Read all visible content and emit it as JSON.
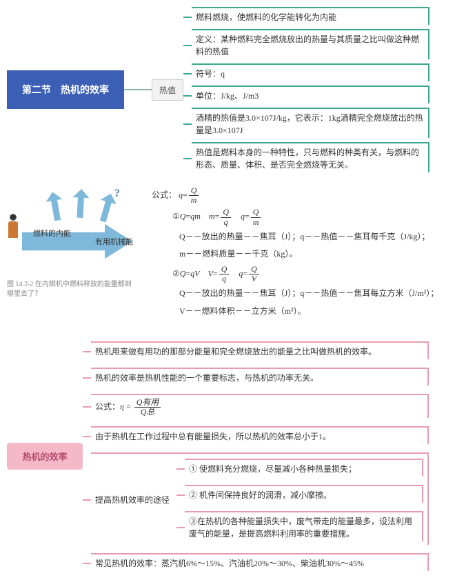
{
  "colors": {
    "main_node_bg": "#3b5fb5",
    "main_node_text": "#ffffff",
    "sub_node_bg": "#f2f2f2",
    "sub_node_border": "#cccccc",
    "teal_border": "#3ba891",
    "pink_border": "#e89bb0",
    "pink_node_bg": "#f5b8c9",
    "pink_node_text": "#b54d6d",
    "arrow_fill": "#7eb8da",
    "text": "#333333",
    "caption": "#888888",
    "background": "#ffffff"
  },
  "main": {
    "title": "第二节　热机的效率",
    "sub_node": "热值"
  },
  "heat_value_branches": [
    "燃料燃烧，使燃料的化学能转化为内能",
    "定义：某种燃料完全燃烧放出的热量与其质量之比叫做这种燃料的热值",
    "符号：q",
    "单位：J/kg、J/m3",
    "酒精的热值是3.0×107J/kg，它表示：1kg酒精完全燃烧放出的热量是3.0×107J",
    "热值是燃料本身的一种特性，只与燃料的种类有关，与燃料的形态、质量、体积、是否完全燃烧等无关。"
  ],
  "energy_diagram": {
    "label_fuel": "燃料的内能",
    "label_useful": "有用机械能",
    "question_mark": "?",
    "caption": "图 14.2-2  在内燃机中燃料释放的能量都到哪里去了？"
  },
  "formulas": {
    "main_label": "公式：",
    "main": "q = Q / m",
    "set1_label": "①",
    "set1_a": "Q=qm",
    "set1_b": "m = Q / q",
    "set1_c": "q = Q / m",
    "line1_desc": "Q－－放出的热量－－焦耳（J）；q－－热值－－焦耳每千克（J/kg）；",
    "line1_desc2": "m－－燃料质量－－千克（kg）。",
    "set2_label": "②",
    "set2_a": "Q=qV",
    "set2_b": "V = Q / q",
    "set2_c": "q = Q / V",
    "line2_desc": "Q－－放出的热量－－焦耳（J）；q－－热值－－焦耳每立方米（J/m³）；",
    "line2_desc2": "V－－燃料体积－－立方米（m³）。"
  },
  "efficiency": {
    "node_label": "热机的效率",
    "branches": [
      "热机用来做有用功的那部分能量和完全燃烧放出的能量之比叫做热机的效率。",
      "热机的效率是热机性能的一个重要标志，与热机的功率无关。",
      "FORMULA",
      "由于热机在工作过程中总有能量损失，所以热机的效率总小于1。",
      "WAYS",
      "常见热机的效率：蒸汽机6%～15%、汽油机20%～30%、柴油机30%～45%"
    ],
    "formula_label": "公式：",
    "formula_eta": "η",
    "formula_num": "Q有用",
    "formula_den": "Q总",
    "ways_label": "提高热机效率的途径",
    "ways": [
      "① 使燃料充分燃烧，尽量减小各种热量损失；",
      "② 机件间保持良好的润滑，减小摩擦。",
      "③在热机的各种能量损失中，废气带走的能量最多，设法利用废气的能量，是提高燃料利用率的重要措施。"
    ]
  }
}
